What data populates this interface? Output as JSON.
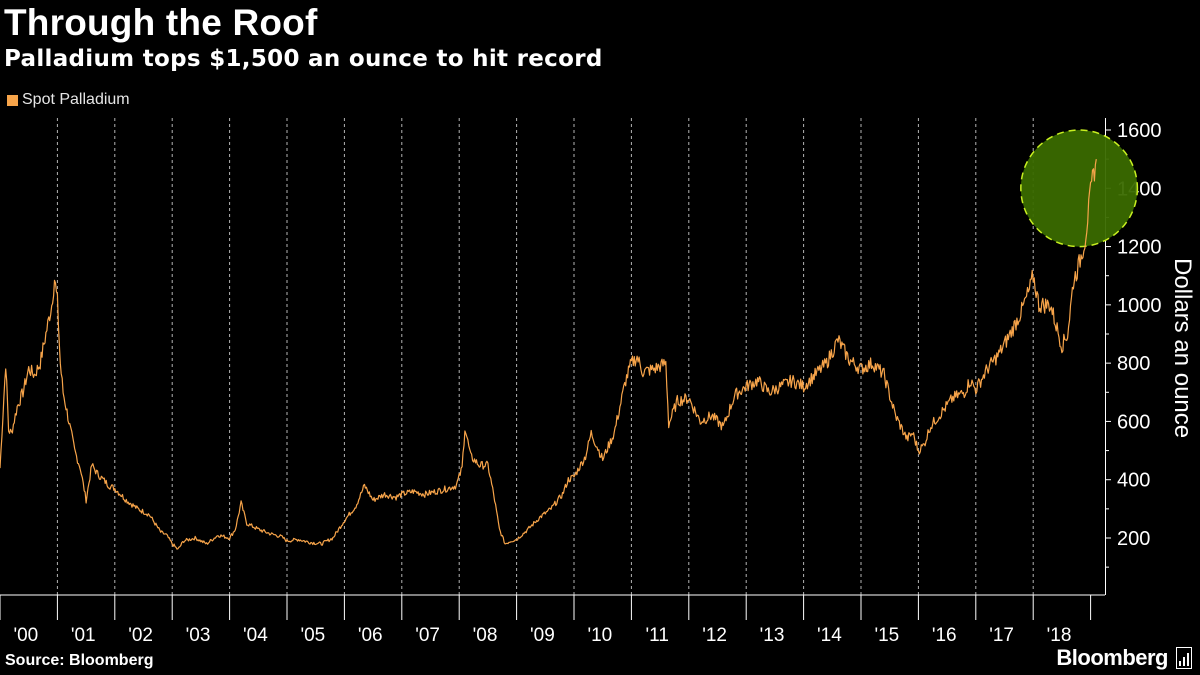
{
  "header": {
    "title": "Through the Roof",
    "subtitle": "Palladium tops $1,500 an ounce to hit record"
  },
  "legend": {
    "label": "Spot Palladium"
  },
  "footer": {
    "source": "Source: Bloomberg",
    "brand": "Bloomberg"
  },
  "colors": {
    "series": "#f7a44a",
    "highlight": "#3a6a00",
    "highlight_border": "#c8f020",
    "grid": "#b4b4b4"
  },
  "chart_data": {
    "type": "line",
    "title": "Through the Roof",
    "subtitle": "Palladium tops $1,500 an ounce to hit record",
    "xlabel": "",
    "ylabel": "Dollars an ounce",
    "xlim": [
      2000.0,
      2019.1
    ],
    "ylim": [
      80,
      1650
    ],
    "yticks": [
      200,
      400,
      600,
      800,
      1000,
      1200,
      1400,
      1600
    ],
    "xticks": [
      "'00",
      "'01",
      "'02",
      "'03",
      "'04",
      "'05",
      "'06",
      "'07",
      "'08",
      "'09",
      "'10",
      "'11",
      "'12",
      "'13",
      "'14",
      "'15",
      "'16",
      "'17",
      "'18"
    ],
    "grid": "vertical dashed at year boundaries",
    "legend_position": "top-left",
    "highlight": {
      "shape": "circle",
      "center": [
        2018.8,
        1400
      ],
      "radius_y": 200,
      "note": "record high"
    },
    "series": [
      {
        "name": "Spot Palladium",
        "x": [
          2000.0,
          2000.05,
          2000.1,
          2000.15,
          2000.2,
          2000.3,
          2000.4,
          2000.5,
          2000.6,
          2000.7,
          2000.8,
          2000.9,
          2000.95,
          2001.0,
          2001.05,
          2001.1,
          2001.2,
          2001.3,
          2001.4,
          2001.5,
          2001.6,
          2001.7,
          2001.8,
          2001.9,
          2002.0,
          2002.2,
          2002.4,
          2002.6,
          2002.8,
          2002.9,
          2003.0,
          2003.1,
          2003.2,
          2003.4,
          2003.6,
          2003.8,
          2004.0,
          2004.1,
          2004.2,
          2004.3,
          2004.5,
          2004.7,
          2004.9,
          2005.0,
          2005.2,
          2005.4,
          2005.6,
          2005.8,
          2006.0,
          2006.2,
          2006.35,
          2006.5,
          2006.7,
          2006.9,
          2007.0,
          2007.2,
          2007.4,
          2007.6,
          2007.8,
          2007.95,
          2008.05,
          2008.1,
          2008.2,
          2008.35,
          2008.5,
          2008.6,
          2008.7,
          2008.8,
          2008.9,
          2009.0,
          2009.2,
          2009.4,
          2009.6,
          2009.8,
          2009.9,
          2010.0,
          2010.2,
          2010.3,
          2010.5,
          2010.7,
          2010.9,
          2011.0,
          2011.1,
          2011.2,
          2011.4,
          2011.6,
          2011.65,
          2011.8,
          2012.0,
          2012.2,
          2012.4,
          2012.6,
          2012.8,
          2013.0,
          2013.2,
          2013.4,
          2013.6,
          2013.8,
          2014.0,
          2014.2,
          2014.4,
          2014.5,
          2014.6,
          2014.8,
          2015.0,
          2015.2,
          2015.4,
          2015.6,
          2015.8,
          2015.9,
          2016.0,
          2016.1,
          2016.2,
          2016.4,
          2016.6,
          2016.8,
          2016.9,
          2017.0,
          2017.2,
          2017.4,
          2017.6,
          2017.8,
          2017.95,
          2018.0,
          2018.1,
          2018.3,
          2018.5,
          2018.6,
          2018.7,
          2018.8,
          2018.9,
          2018.95,
          2019.0,
          2019.05,
          2019.1
        ],
        "values": [
          440,
          620,
          800,
          570,
          560,
          650,
          700,
          780,
          760,
          800,
          900,
          1000,
          1090,
          1010,
          800,
          700,
          600,
          500,
          440,
          330,
          450,
          420,
          400,
          380,
          370,
          330,
          300,
          280,
          220,
          210,
          180,
          160,
          190,
          200,
          180,
          210,
          200,
          230,
          320,
          250,
          230,
          215,
          205,
          190,
          195,
          185,
          180,
          200,
          260,
          310,
          380,
          330,
          350,
          340,
          350,
          360,
          350,
          360,
          370,
          380,
          440,
          580,
          480,
          450,
          450,
          350,
          230,
          180,
          190,
          195,
          230,
          270,
          300,
          350,
          400,
          410,
          480,
          560,
          470,
          560,
          740,
          800,
          820,
          770,
          780,
          800,
          590,
          670,
          680,
          600,
          620,
          580,
          690,
          720,
          740,
          700,
          720,
          740,
          720,
          760,
          800,
          840,
          880,
          810,
          780,
          800,
          760,
          620,
          540,
          560,
          500,
          520,
          580,
          630,
          680,
          700,
          740,
          710,
          780,
          830,
          900,
          980,
          1060,
          1100,
          1000,
          1000,
          860,
          900,
          1080,
          1140,
          1220,
          1300,
          1380,
          1450,
          1500
        ]
      }
    ]
  }
}
